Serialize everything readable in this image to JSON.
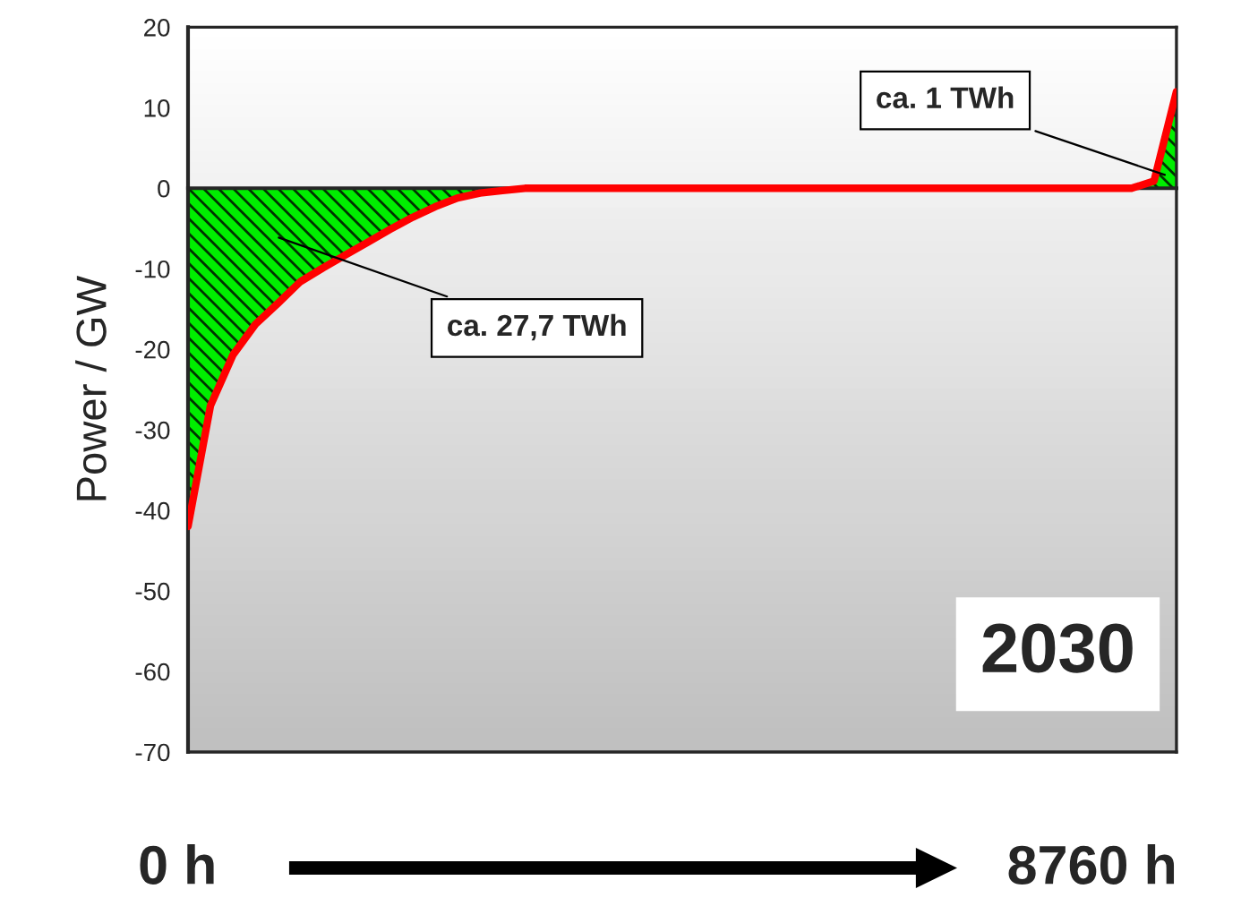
{
  "chart_data": {
    "type": "area",
    "ylabel": "Power / GW",
    "categories": [
      null,
      null,
      null,
      null,
      null,
      null,
      null,
      null,
      null,
      null,
      null,
      null,
      null,
      null,
      null,
      null,
      null,
      null,
      null,
      null,
      null,
      null,
      null,
      null,
      null,
      null,
      null,
      null,
      null,
      null,
      null,
      null,
      null,
      null,
      null,
      null,
      null,
      null,
      null,
      null,
      null,
      null,
      null,
      null,
      null
    ],
    "series": [
      {
        "color": "#ff0000",
        "values": [
          -42,
          -27,
          -20.7,
          -16.9,
          -14.3,
          -11.6,
          -9.9,
          -8.3,
          -6.7,
          -5.1,
          -3.6,
          -2.3,
          -1.2,
          -0.6,
          -0.3,
          0,
          0,
          0,
          0,
          0,
          0,
          0,
          0,
          0,
          0,
          0,
          0,
          0,
          0,
          0,
          0,
          0,
          0,
          0,
          0,
          0,
          0,
          0,
          0,
          0,
          0,
          0,
          0,
          0.9,
          12
        ]
      }
    ],
    "ylim": [
      -70,
      20
    ],
    "yticks": [
      -70,
      -60,
      -50,
      -40,
      -30,
      -20,
      -10,
      0,
      10,
      20
    ],
    "tick_labels": "y",
    "annotations": [
      "ca. 27,7 TWh",
      "ca. 1 TWh",
      "2030",
      "0 h",
      "8760 h"
    ]
  }
}
